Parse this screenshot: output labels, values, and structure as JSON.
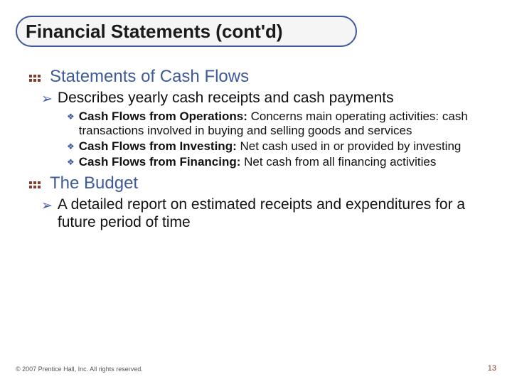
{
  "colors": {
    "title_text": "#1a1a1a",
    "title_border": "#3d5a9a",
    "title_bg": "#f5f5f5",
    "heading_text": "#3d5a9a",
    "dot_color": "#8b3a2b",
    "body_text": "#111111",
    "arrow_color": "#3d5a9a",
    "diamond_color": "#3d5a9a",
    "footer_text": "#555555",
    "pagenum_text": "#8b3a2b"
  },
  "fontsize": {
    "title": 26,
    "heading": 24,
    "level1": 21,
    "level2": 17,
    "footer": 9,
    "pagenum": 11
  },
  "title": "Financial Statements (cont'd)",
  "sections": [
    {
      "heading": "Statements of Cash Flows",
      "level1": [
        {
          "text": "Describes yearly cash receipts and cash payments",
          "level2": [
            {
              "bold": "Cash Flows from Operations:",
              "rest": " Concerns main operating activities: cash transactions involved in buying and selling goods and services"
            },
            {
              "bold": "Cash Flows from Investing:",
              "rest": " Net cash used in or provided by investing"
            },
            {
              "bold": "Cash Flows from Financing:",
              "rest": " Net cash from all financing activities"
            }
          ]
        }
      ]
    },
    {
      "heading": "The Budget",
      "level1": [
        {
          "text": "A detailed report on estimated receipts and expenditures for a future period of time",
          "level2": []
        }
      ]
    }
  ],
  "footer": {
    "copyright": "© 2007 Prentice Hall, Inc. All rights reserved.",
    "pagenum": "13"
  }
}
